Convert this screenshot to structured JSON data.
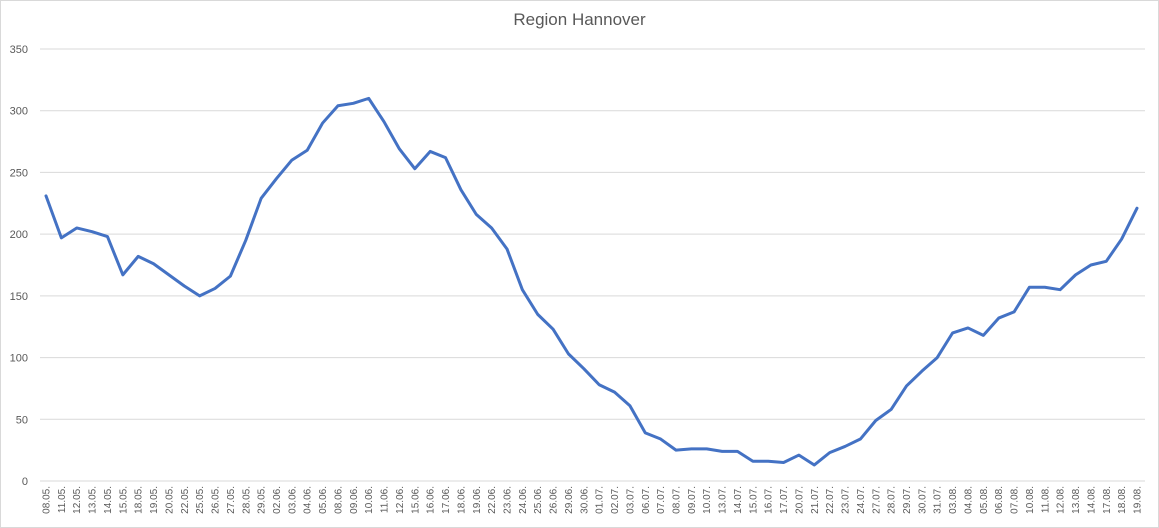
{
  "chart_data": {
    "type": "line",
    "title": "Region Hannover",
    "xlabel": "",
    "ylabel": "",
    "ylim": [
      0,
      350
    ],
    "yticks": [
      0,
      50,
      100,
      150,
      200,
      250,
      300,
      350
    ],
    "grid": true,
    "legend": "none",
    "line_color": "#4472C4",
    "categories": [
      "08.05.",
      "11.05.",
      "12.05.",
      "13.05.",
      "14.05.",
      "15.05.",
      "18.05.",
      "19.05.",
      "20.05.",
      "22.05.",
      "25.05.",
      "26.05.",
      "27.05.",
      "28.05.",
      "29.05.",
      "02.06.",
      "03.06.",
      "04.06.",
      "05.06.",
      "08.06.",
      "09.06.",
      "10.06.",
      "11.06.",
      "12.06.",
      "15.06.",
      "16.06.",
      "17.06.",
      "18.06.",
      "19.06.",
      "22.06.",
      "23.06.",
      "24.06.",
      "25.06.",
      "26.06.",
      "29.06.",
      "30.06.",
      "01.07.",
      "02.07.",
      "03.07.",
      "06.07.",
      "07.07.",
      "08.07.",
      "09.07.",
      "10.07.",
      "13.07.",
      "14.07.",
      "15.07.",
      "16.07.",
      "17.07.",
      "20.07.",
      "21.07.",
      "22.07.",
      "23.07.",
      "24.07.",
      "27.07.",
      "28.07.",
      "29.07.",
      "30.07.",
      "31.07.",
      "03.08.",
      "04.08.",
      "05.08.",
      "06.08.",
      "07.08.",
      "10.08.",
      "11.08.",
      "12.08.",
      "13.08.",
      "14.08.",
      "17.08.",
      "18.08.",
      "19.08."
    ],
    "values": [
      231,
      197,
      205,
      202,
      198,
      167,
      182,
      176,
      167,
      158,
      150,
      156,
      166,
      195,
      229,
      245,
      260,
      268,
      290,
      304,
      306,
      310,
      291,
      269,
      253,
      267,
      262,
      236,
      216,
      205,
      188,
      155,
      135,
      123,
      103,
      91,
      78,
      72,
      61,
      39,
      34,
      25,
      26,
      26,
      24,
      24,
      16,
      16,
      15,
      21,
      13,
      23,
      28,
      34,
      49,
      58,
      77,
      89,
      100,
      120,
      124,
      118,
      132,
      137,
      157,
      157,
      155,
      167,
      175,
      178,
      196,
      221
    ]
  }
}
